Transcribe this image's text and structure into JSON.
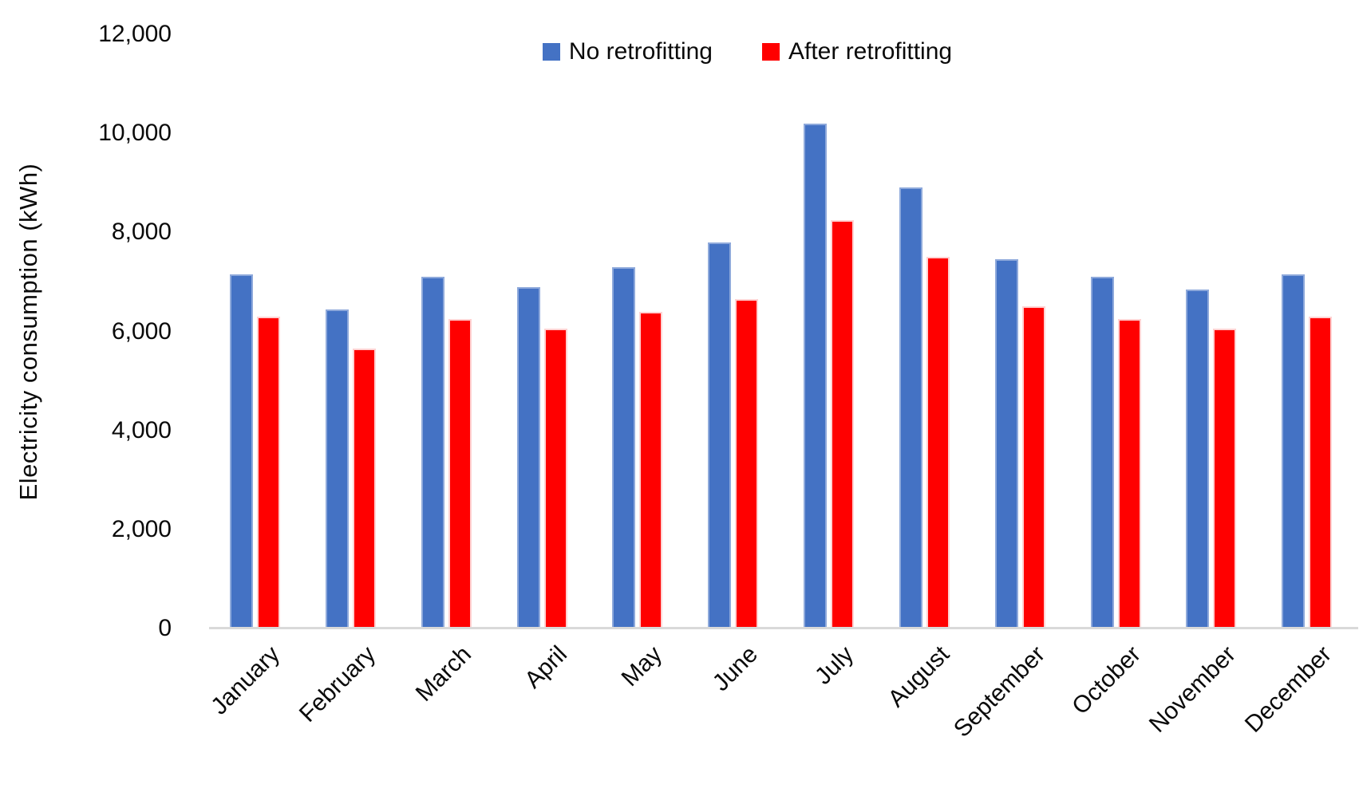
{
  "chart_data": {
    "type": "bar",
    "title": "",
    "xlabel": "",
    "ylabel": "Electricity consumption (kWh)",
    "ylim": [
      0,
      12000
    ],
    "ytick_step": 2000,
    "yticks": [
      0,
      2000,
      4000,
      6000,
      8000,
      10000,
      12000
    ],
    "ytick_labels": [
      "0",
      "2,000",
      "4,000",
      "6,000",
      "8,000",
      "10,000",
      "12,000"
    ],
    "grid": false,
    "legend_position": "top-center",
    "background_color": "#ffffff",
    "axis_line_color": "#d9d9d9",
    "categories": [
      "January",
      "February",
      "March",
      "April",
      "May",
      "June",
      "July",
      "August",
      "September",
      "October",
      "November",
      "December"
    ],
    "series": [
      {
        "name": "No retrofitting",
        "color": "#4472C4",
        "edge_color": "#8EA9DB",
        "values": [
          7150,
          6450,
          7100,
          6900,
          7300,
          7800,
          10200,
          8900,
          7450,
          7100,
          6850,
          7150
        ]
      },
      {
        "name": "After retrofitting",
        "color": "#FF0000",
        "edge_color": "#FFD2D2",
        "values": [
          6300,
          5650,
          6250,
          6050,
          6400,
          6650,
          8250,
          7500,
          6500,
          6250,
          6050,
          6300
        ]
      }
    ]
  }
}
